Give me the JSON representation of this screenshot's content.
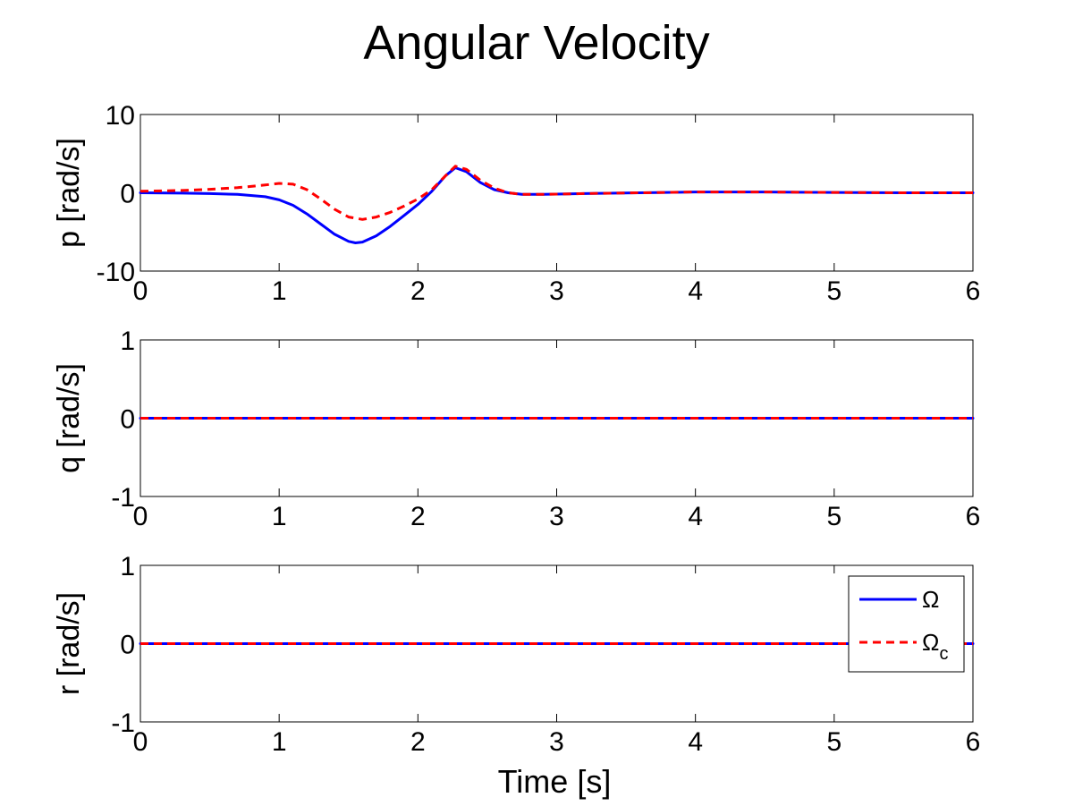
{
  "chart_data": {
    "type": "line",
    "title": "Angular Velocity",
    "xlabel": "Time [s]",
    "xlim": [
      0,
      6
    ],
    "xticks": [
      "0",
      "1",
      "2",
      "3",
      "4",
      "5",
      "6"
    ],
    "legend": {
      "placement": "inside-right",
      "entries": [
        {
          "symbol": "Ω",
          "subscript": "",
          "color": "#0000ff",
          "style": "solid"
        },
        {
          "symbol": "Ω",
          "subscript": "c",
          "color": "#ff0000",
          "style": "dashed"
        }
      ]
    },
    "subplots": [
      {
        "ylabel": "p [rad/s]",
        "ylim": [
          -10,
          10
        ],
        "yticks": [
          "-10",
          "0",
          "10"
        ],
        "series": [
          {
            "color": "#0000ff",
            "style": "solid",
            "x": [
              0,
              0.3,
              0.5,
              0.7,
              0.9,
              1.0,
              1.1,
              1.2,
              1.3,
              1.4,
              1.5,
              1.55,
              1.6,
              1.7,
              1.8,
              1.9,
              2.0,
              2.1,
              2.2,
              2.27,
              2.35,
              2.45,
              2.55,
              2.65,
              2.75,
              2.9,
              3.2,
              3.6,
              4.0,
              4.5,
              5.0,
              5.5,
              6.0
            ],
            "y": [
              0,
              -0.05,
              -0.1,
              -0.2,
              -0.5,
              -0.9,
              -1.6,
              -2.7,
              -4.0,
              -5.3,
              -6.2,
              -6.4,
              -6.3,
              -5.5,
              -4.3,
              -2.9,
              -1.5,
              0.2,
              2.2,
              3.2,
              2.7,
              1.3,
              0.4,
              0.0,
              -0.2,
              -0.2,
              -0.1,
              0.0,
              0.1,
              0.1,
              0.05,
              0.0,
              0.0
            ]
          },
          {
            "color": "#ff0000",
            "style": "dashed",
            "x": [
              0,
              0.3,
              0.5,
              0.7,
              0.9,
              1.0,
              1.1,
              1.2,
              1.3,
              1.4,
              1.5,
              1.6,
              1.7,
              1.8,
              1.9,
              2.0,
              2.1,
              2.2,
              2.27,
              2.35,
              2.45,
              2.55,
              2.65,
              2.75,
              2.9,
              3.2,
              3.6,
              4.0,
              4.5,
              5.0,
              5.5,
              6.0
            ],
            "y": [
              0.2,
              0.3,
              0.45,
              0.65,
              1.0,
              1.2,
              1.1,
              0.4,
              -0.8,
              -2.1,
              -3.1,
              -3.4,
              -3.1,
              -2.5,
              -1.7,
              -0.8,
              0.4,
              2.2,
              3.4,
              3.0,
              1.6,
              0.6,
              0.0,
              -0.2,
              -0.2,
              -0.1,
              0.0,
              0.1,
              0.1,
              0.05,
              0.0,
              0.0
            ]
          }
        ]
      },
      {
        "ylabel": "q [rad/s]",
        "ylim": [
          -1,
          1
        ],
        "yticks": [
          "-1",
          "0",
          "1"
        ],
        "series": [
          {
            "color": "#0000ff",
            "style": "solid",
            "x": [
              0,
              6
            ],
            "y": [
              0,
              0
            ]
          },
          {
            "color": "#ff0000",
            "style": "dashed",
            "x": [
              0,
              6
            ],
            "y": [
              0,
              0
            ]
          }
        ]
      },
      {
        "ylabel": "r [rad/s]",
        "ylim": [
          -1,
          1
        ],
        "yticks": [
          "-1",
          "0",
          "1"
        ],
        "series": [
          {
            "color": "#0000ff",
            "style": "solid",
            "x": [
              0,
              6
            ],
            "y": [
              0,
              0
            ]
          },
          {
            "color": "#ff0000",
            "style": "dashed",
            "x": [
              0,
              6
            ],
            "y": [
              0,
              0
            ]
          }
        ]
      }
    ]
  }
}
